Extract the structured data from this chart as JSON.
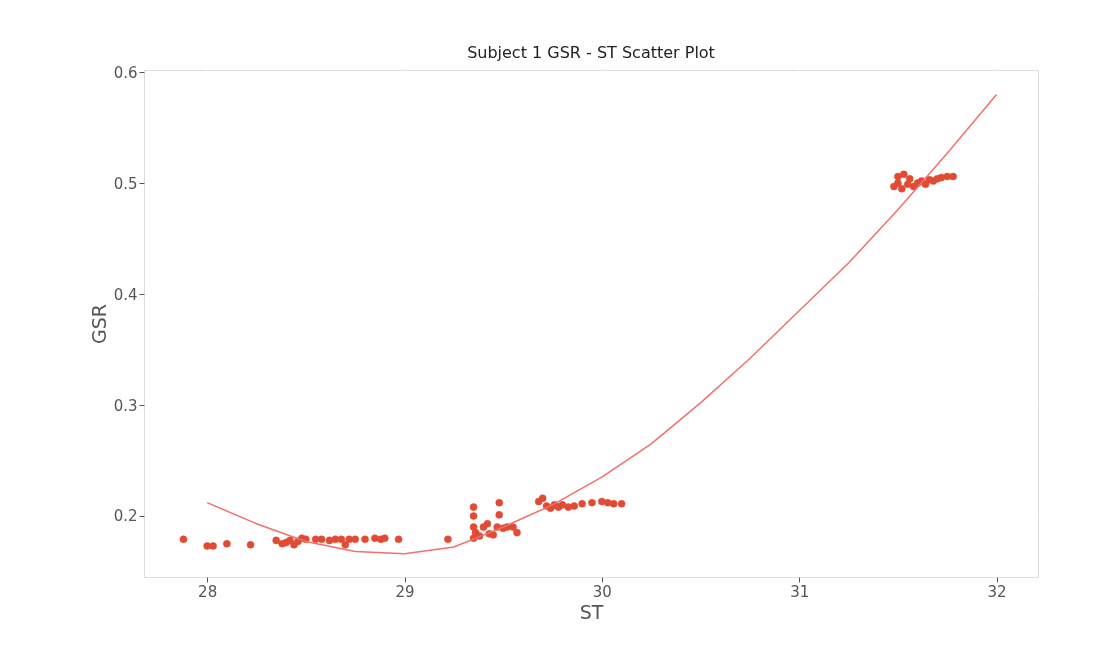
{
  "chart_data": {
    "type": "scatter",
    "title": "Subject 1 GSR - ST Scatter Plot",
    "xlabel": "ST",
    "ylabel": "GSR",
    "xlim": [
      27.68,
      32.21
    ],
    "ylim": [
      0.145,
      0.602
    ],
    "xticks": [
      28,
      29,
      30,
      31,
      32
    ],
    "yticks": [
      0.2,
      0.3,
      0.4,
      0.5,
      0.6
    ],
    "grid": true,
    "legend": false,
    "series": [
      {
        "marker": "circle",
        "color": "#e24a33",
        "x": [
          27.88,
          28.0,
          28.03,
          28.1,
          28.22,
          28.35,
          28.38,
          28.4,
          28.42,
          28.44,
          28.46,
          28.48,
          28.5,
          28.55,
          28.58,
          28.62,
          28.65,
          28.68,
          28.7,
          28.72,
          28.75,
          28.8,
          28.85,
          28.88,
          28.9,
          28.97,
          29.22,
          29.35,
          29.35,
          29.35,
          29.35,
          29.36,
          29.38,
          29.4,
          29.42,
          29.43,
          29.45,
          29.47,
          29.48,
          29.48,
          29.5,
          29.52,
          29.55,
          29.57,
          29.68,
          29.7,
          29.72,
          29.74,
          29.76,
          29.78,
          29.8,
          29.83,
          29.86,
          29.9,
          29.95,
          30.0,
          30.03,
          30.06,
          30.1,
          31.48,
          31.5,
          31.5,
          31.52,
          31.53,
          31.55,
          31.56,
          31.58,
          31.6,
          31.62,
          31.64,
          31.66,
          31.68,
          31.7,
          31.72,
          31.75,
          31.78
        ],
        "values": [
          0.179,
          0.173,
          0.173,
          0.175,
          0.174,
          0.178,
          0.175,
          0.176,
          0.178,
          0.174,
          0.177,
          0.18,
          0.179,
          0.179,
          0.179,
          0.178,
          0.179,
          0.179,
          0.174,
          0.179,
          0.179,
          0.179,
          0.18,
          0.179,
          0.18,
          0.179,
          0.179,
          0.18,
          0.19,
          0.2,
          0.208,
          0.185,
          0.182,
          0.19,
          0.193,
          0.184,
          0.183,
          0.19,
          0.212,
          0.201,
          0.189,
          0.19,
          0.19,
          0.185,
          0.213,
          0.216,
          0.209,
          0.207,
          0.21,
          0.208,
          0.21,
          0.208,
          0.209,
          0.211,
          0.212,
          0.213,
          0.212,
          0.211,
          0.211,
          0.497,
          0.5,
          0.506,
          0.495,
          0.508,
          0.499,
          0.504,
          0.497,
          0.5,
          0.502,
          0.499,
          0.503,
          0.502,
          0.504,
          0.505,
          0.506,
          0.506
        ]
      },
      {
        "type": "line",
        "marker": "none",
        "color": "#f07070",
        "x": [
          28,
          28.25,
          28.5,
          28.75,
          29,
          29.25,
          29.5,
          29.75,
          30,
          30.25,
          30.5,
          30.75,
          31,
          31.25,
          31.5,
          31.75,
          32
        ],
        "values": [
          0.212,
          0.193,
          0.177,
          0.168,
          0.166,
          0.172,
          0.19,
          0.21,
          0.235,
          0.265,
          0.302,
          0.342,
          0.385,
          0.428,
          0.476,
          0.527,
          0.58
        ]
      }
    ]
  }
}
